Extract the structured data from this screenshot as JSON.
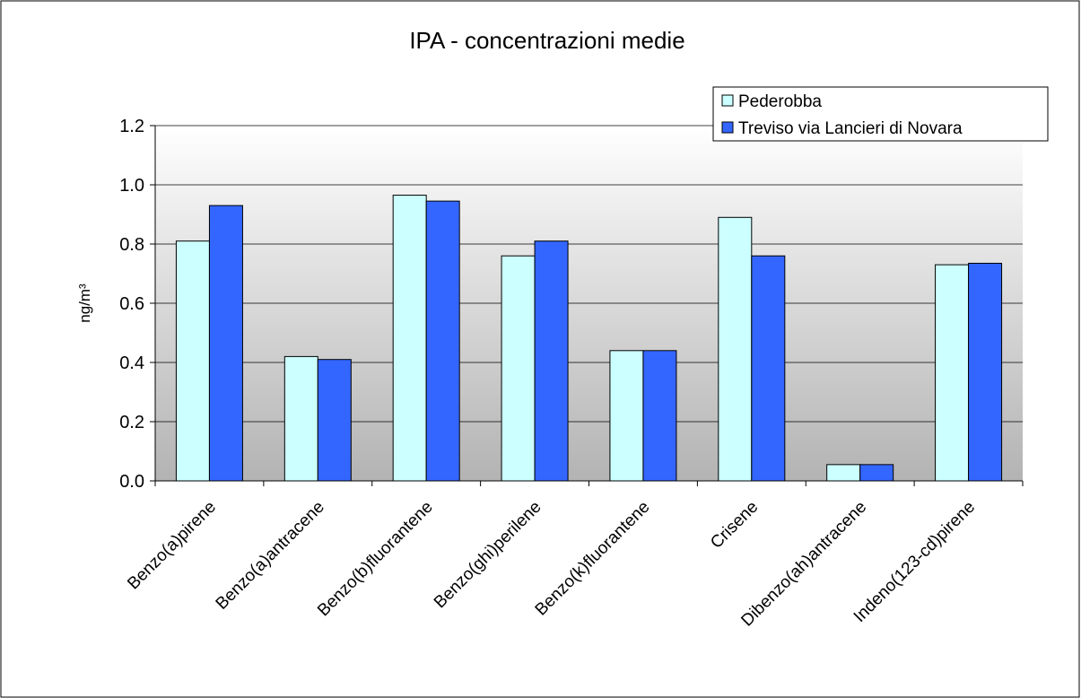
{
  "chart_data": {
    "type": "bar",
    "title": "IPA - concentrazioni medie",
    "y_label": "ng/m³",
    "categories": [
      "Benzo(a)pirene",
      "Benzo(a)antracene",
      "Benzo(b)fluorantene",
      "Benzo(ghi)perilene",
      "Benzo(k)fluorantene",
      "Crisene",
      "Dibenzo(ah)antracene",
      "Indeno(123-cd)pirene"
    ],
    "series": [
      {
        "name": "Pederobba",
        "color": "#ccffff",
        "values": [
          0.81,
          0.42,
          0.965,
          0.76,
          0.44,
          0.89,
          0.055,
          0.73
        ]
      },
      {
        "name": "Treviso via Lancieri di Novara",
        "color": "#3366ff",
        "values": [
          0.93,
          0.41,
          0.945,
          0.81,
          0.44,
          0.76,
          0.055,
          0.735
        ]
      }
    ],
    "ylim": [
      0,
      1.2
    ],
    "yticks": [
      {
        "value": 0,
        "label": "0.0"
      },
      0.2,
      0.4,
      0.6,
      0.8,
      {
        "value": 1,
        "label": "1.0"
      },
      1.2
    ],
    "grid": true,
    "legend": "upper right"
  }
}
